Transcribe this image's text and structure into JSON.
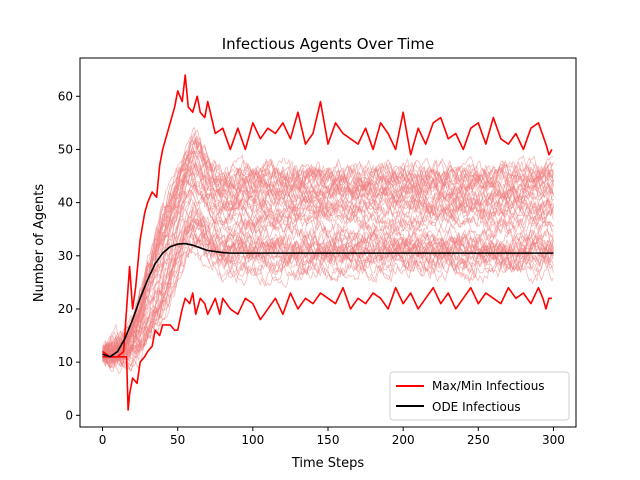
{
  "chart_data": {
    "type": "line",
    "title": "Infectious Agents Over Time",
    "xlabel": "Time Steps",
    "ylabel": "Number of Agents",
    "xlim": [
      -15,
      315
    ],
    "ylim": [
      -2.2,
      67.2
    ],
    "xticks": [
      0,
      50,
      100,
      150,
      200,
      250,
      300
    ],
    "yticks": [
      0,
      10,
      20,
      30,
      40,
      50,
      60
    ],
    "grid": false,
    "legend_position": "lower-right",
    "legend": [
      {
        "label": "Max/Min Infectious",
        "color": "#ff0000"
      },
      {
        "label": "ODE Infectious",
        "color": "#000000"
      }
    ],
    "colors": {
      "ensemble": "#f08080",
      "maxmin": "#ff0000",
      "ode": "#000000"
    },
    "ensemble_band": {
      "description_count_runs": 60,
      "x": [
        0,
        5,
        10,
        15,
        20,
        25,
        30,
        35,
        40,
        45,
        50,
        55,
        60,
        65,
        70,
        75,
        80,
        85,
        90,
        95,
        100,
        110,
        120,
        140,
        160,
        180,
        200,
        220,
        240,
        260,
        280,
        300
      ],
      "low": [
        11,
        11,
        11,
        11,
        11,
        12,
        14,
        16,
        18,
        22,
        26,
        30,
        32,
        31,
        29,
        28,
        27,
        27,
        27,
        27,
        27,
        27,
        27,
        27,
        27,
        27,
        27,
        27,
        27,
        27,
        27,
        27
      ],
      "high": [
        12,
        12,
        13,
        14,
        17,
        22,
        28,
        33,
        38,
        42,
        46,
        50,
        52,
        51,
        48,
        46,
        45,
        45,
        46,
        46,
        46,
        46,
        46,
        46,
        46,
        46,
        46,
        46,
        46,
        46,
        46,
        46
      ]
    },
    "series": [
      {
        "name": "Max/Min Infectious",
        "role": "max",
        "x": [
          0,
          5,
          10,
          14,
          16,
          18,
          20,
          22,
          25,
          28,
          30,
          33,
          36,
          38,
          40,
          42,
          45,
          48,
          50,
          53,
          55,
          57,
          60,
          63,
          65,
          68,
          70,
          75,
          80,
          85,
          90,
          95,
          100,
          105,
          110,
          115,
          120,
          125,
          130,
          135,
          140,
          145,
          150,
          155,
          160,
          165,
          170,
          175,
          180,
          185,
          190,
          195,
          200,
          205,
          210,
          215,
          220,
          225,
          230,
          235,
          240,
          245,
          250,
          255,
          260,
          265,
          270,
          275,
          280,
          285,
          290,
          295,
          297,
          299
        ],
        "y": [
          11,
          11,
          11,
          12,
          20,
          28,
          20,
          24,
          33,
          38,
          40,
          42,
          41,
          47,
          50,
          52,
          55,
          58,
          61,
          59,
          64,
          58,
          57,
          60,
          57,
          56,
          59,
          53,
          54,
          50,
          54,
          50,
          55,
          52,
          54,
          53,
          55,
          52,
          57,
          51,
          53,
          59,
          51,
          55,
          53,
          52,
          51,
          54,
          50,
          55,
          53,
          50,
          57,
          49,
          54,
          51,
          55,
          56,
          52,
          53,
          50,
          54,
          55,
          51,
          56,
          52,
          51,
          53,
          50,
          54,
          55,
          51,
          49,
          50
        ]
      },
      {
        "name": "Max/Min Infectious",
        "role": "min",
        "x": [
          0,
          5,
          10,
          14,
          16,
          17,
          18,
          20,
          23,
          25,
          28,
          30,
          33,
          35,
          38,
          40,
          45,
          48,
          50,
          53,
          55,
          58,
          60,
          62,
          65,
          68,
          70,
          75,
          78,
          80,
          85,
          90,
          95,
          100,
          105,
          110,
          115,
          120,
          125,
          130,
          135,
          140,
          145,
          150,
          155,
          160,
          165,
          170,
          175,
          180,
          185,
          190,
          195,
          200,
          205,
          210,
          215,
          220,
          225,
          230,
          235,
          240,
          245,
          250,
          255,
          260,
          265,
          270,
          275,
          280,
          285,
          290,
          293,
          295,
          297,
          299
        ],
        "y": [
          12,
          11,
          11,
          11,
          11,
          1,
          4,
          7,
          6,
          10,
          11,
          12,
          13,
          16,
          15,
          17,
          17,
          16,
          16,
          20,
          22,
          21,
          23,
          19,
          22,
          21,
          19,
          22,
          19,
          22,
          20,
          19,
          22,
          21,
          18,
          20,
          22,
          19,
          23,
          20,
          22,
          21,
          23,
          22,
          21,
          24,
          20,
          22,
          21,
          23,
          22,
          20,
          24,
          21,
          23,
          20,
          22,
          24,
          21,
          23,
          20,
          22,
          24,
          21,
          23,
          22,
          21,
          24,
          22,
          23,
          21,
          24,
          22,
          20,
          22,
          22
        ]
      },
      {
        "name": "ODE Infectious",
        "role": "ode",
        "x": [
          0,
          5,
          10,
          15,
          20,
          25,
          30,
          35,
          40,
          45,
          50,
          55,
          60,
          65,
          70,
          75,
          80,
          85,
          90,
          95,
          100,
          110,
          120,
          150,
          200,
          250,
          300
        ],
        "y": [
          11.5,
          11,
          12,
          14.5,
          18,
          22,
          25.5,
          28.5,
          30.5,
          31.7,
          32.2,
          32.3,
          32,
          31.5,
          31,
          30.8,
          30.6,
          30.5,
          30.5,
          30.5,
          30.5,
          30.5,
          30.5,
          30.5,
          30.5,
          30.5,
          30.5
        ]
      }
    ]
  }
}
